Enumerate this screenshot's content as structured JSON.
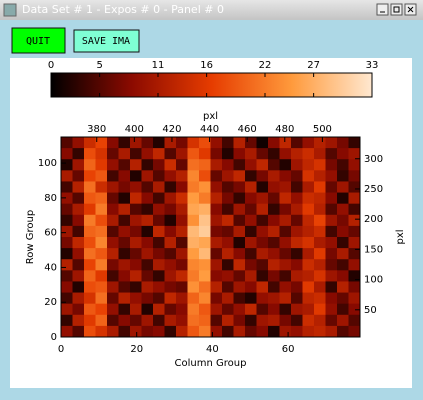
{
  "window": {
    "title": "Data Set # 1 - Expos # 0 - Panel # 0"
  },
  "buttons": [
    "QUIT",
    "SAVE IMA"
  ],
  "chart_data": {
    "type": "heatmap",
    "xlabel": "Column Group",
    "ylabel": "Row Group",
    "x2label": "pxl",
    "y2label": "pxl",
    "xlim": [
      0,
      79
    ],
    "xticks": [
      0,
      20,
      40,
      60
    ],
    "ylim": [
      0,
      115
    ],
    "yticks": [
      0,
      20,
      40,
      60,
      80,
      100
    ],
    "x2lim": [
      361,
      520
    ],
    "x2ticks": [
      380,
      400,
      420,
      440,
      460,
      480,
      500
    ],
    "y2lim": [
      5,
      336
    ],
    "y2ticks": [
      50,
      100,
      150,
      200,
      250,
      300
    ],
    "clim": [
      0,
      33
    ],
    "cticks": [
      0,
      5,
      11,
      16,
      22,
      27,
      33
    ],
    "colormap": [
      "#000000",
      "#8b0a00",
      "#e63c00",
      "#ff9a3c",
      "#ffe8d0"
    ],
    "z": [
      [
        5,
        9,
        14,
        17,
        8,
        3,
        10,
        6,
        2,
        11,
        7,
        15,
        18,
        9,
        4,
        12,
        6,
        1,
        8,
        13,
        5,
        9,
        12,
        10,
        7,
        3
      ],
      [
        8,
        3,
        18,
        15,
        6,
        11,
        4,
        9,
        13,
        5,
        10,
        19,
        16,
        7,
        2,
        8,
        11,
        6,
        3,
        9,
        12,
        14,
        11,
        5,
        8,
        10
      ],
      [
        2,
        10,
        20,
        16,
        9,
        5,
        12,
        3,
        7,
        14,
        6,
        21,
        20,
        11,
        8,
        4,
        9,
        13,
        5,
        2,
        10,
        13,
        15,
        7,
        4,
        9
      ],
      [
        11,
        6,
        17,
        19,
        4,
        8,
        2,
        10,
        5,
        9,
        12,
        23,
        18,
        6,
        10,
        13,
        3,
        7,
        11,
        8,
        6,
        15,
        12,
        9,
        3,
        7
      ],
      [
        4,
        12,
        21,
        14,
        10,
        7,
        9,
        5,
        11,
        3,
        8,
        22,
        24,
        9,
        5,
        7,
        12,
        2,
        9,
        10,
        4,
        11,
        16,
        6,
        10,
        5
      ],
      [
        9,
        5,
        19,
        20,
        6,
        2,
        13,
        8,
        4,
        10,
        14,
        25,
        22,
        12,
        7,
        3,
        8,
        10,
        6,
        13,
        9,
        14,
        13,
        8,
        2,
        11
      ],
      [
        6,
        11,
        16,
        22,
        8,
        12,
        5,
        3,
        9,
        7,
        11,
        26,
        27,
        8,
        4,
        10,
        6,
        12,
        3,
        7,
        11,
        16,
        12,
        5,
        9,
        4
      ],
      [
        3,
        8,
        22,
        18,
        11,
        4,
        10,
        12,
        6,
        2,
        9,
        24,
        29,
        10,
        13,
        5,
        9,
        4,
        8,
        11,
        6,
        13,
        17,
        10,
        7,
        12
      ],
      [
        10,
        4,
        20,
        21,
        5,
        9,
        7,
        2,
        13,
        8,
        12,
        28,
        30,
        7,
        6,
        11,
        3,
        9,
        12,
        5,
        10,
        12,
        14,
        4,
        8,
        6
      ],
      [
        7,
        13,
        18,
        23,
        9,
        6,
        11,
        8,
        4,
        12,
        5,
        27,
        26,
        11,
        9,
        2,
        10,
        7,
        5,
        9,
        13,
        15,
        11,
        9,
        3,
        10
      ],
      [
        2,
        9,
        21,
        19,
        12,
        3,
        6,
        10,
        7,
        5,
        10,
        25,
        28,
        6,
        12,
        8,
        4,
        11,
        9,
        6,
        3,
        11,
        16,
        7,
        11,
        5
      ],
      [
        12,
        5,
        17,
        22,
        7,
        10,
        8,
        4,
        11,
        9,
        7,
        23,
        24,
        10,
        3,
        13,
        7,
        5,
        12,
        10,
        8,
        14,
        12,
        6,
        4,
        9
      ],
      [
        5,
        10,
        20,
        16,
        4,
        8,
        12,
        6,
        3,
        10,
        13,
        22,
        25,
        8,
        9,
        6,
        11,
        3,
        7,
        4,
        11,
        12,
        15,
        10,
        8,
        2
      ],
      [
        8,
        2,
        18,
        19,
        10,
        5,
        3,
        11,
        9,
        7,
        6,
        24,
        21,
        12,
        5,
        10,
        8,
        13,
        4,
        9,
        7,
        16,
        11,
        3,
        12,
        7
      ],
      [
        4,
        11,
        15,
        21,
        6,
        12,
        9,
        7,
        5,
        13,
        10,
        20,
        23,
        7,
        11,
        4,
        2,
        9,
        10,
        12,
        5,
        13,
        14,
        8,
        6,
        10
      ],
      [
        10,
        7,
        19,
        17,
        9,
        3,
        11,
        2,
        12,
        6,
        8,
        22,
        19,
        10,
        6,
        9,
        13,
        5,
        8,
        3,
        10,
        11,
        16,
        9,
        4,
        8
      ],
      [
        3,
        12,
        16,
        20,
        5,
        8,
        6,
        10,
        4,
        11,
        9,
        21,
        20,
        5,
        12,
        7,
        3,
        10,
        11,
        7,
        4,
        14,
        12,
        6,
        10,
        5
      ],
      [
        9,
        5,
        18,
        15,
        11,
        4,
        10,
        7,
        8,
        3,
        12,
        19,
        22,
        9,
        4,
        11,
        6,
        8,
        2,
        10,
        9,
        12,
        13,
        11,
        5,
        7
      ]
    ]
  }
}
